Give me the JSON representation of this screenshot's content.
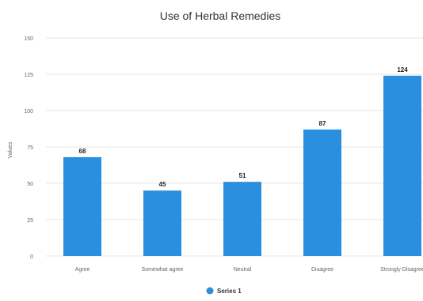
{
  "chart_data": {
    "type": "bar",
    "title": "Use of Herbal Remedies",
    "xlabel": "",
    "ylabel": "Values",
    "categories": [
      "Agree",
      "Somewhat agree",
      "Neutral",
      "Disagree",
      "Strongly Disagree"
    ],
    "series": [
      {
        "name": "Series 1",
        "values": [
          68,
          45,
          51,
          87,
          124
        ]
      }
    ],
    "ylim": [
      0,
      150
    ],
    "yticks": [
      0,
      25,
      50,
      75,
      100,
      125,
      150
    ],
    "grid": true,
    "legend_position": "bottom",
    "data_labels": true
  },
  "colors": {
    "bar": "#2b8fe0",
    "grid": "#e6e6e6",
    "axis_text": "#666666",
    "title": "#333333",
    "data_label": "#222222"
  }
}
